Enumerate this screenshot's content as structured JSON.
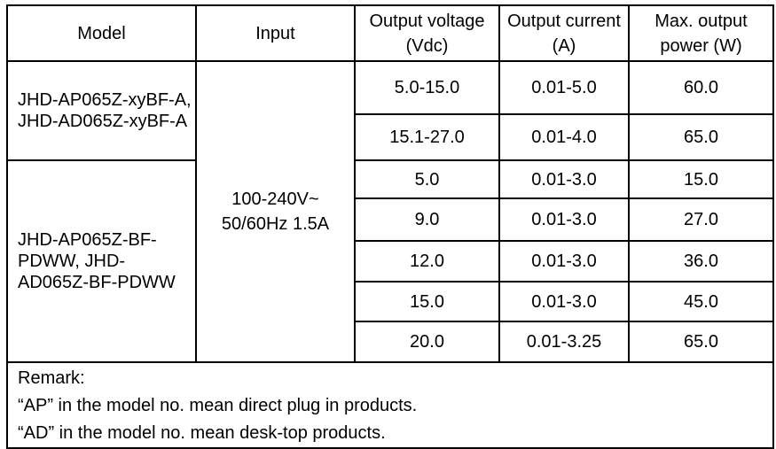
{
  "headers": [
    "Model",
    "Input",
    "Output voltage (Vdc)",
    "Output current (A)",
    "Max. output power (W)"
  ],
  "input": "100-240V~ 50/60Hz 1.5A",
  "groups": [
    {
      "model": "JHD-AP065Z-xyBF-A, JHD-AD065Z-xyBF-A",
      "rows": [
        {
          "voltage": "5.0-15.0",
          "current": "0.01-5.0",
          "power": "60.0"
        },
        {
          "voltage": "15.1-27.0",
          "current": "0.01-4.0",
          "power": "65.0"
        }
      ]
    },
    {
      "model": "JHD-AP065Z-BF-PDWW, JHD-AD065Z-BF-PDWW",
      "rows": [
        {
          "voltage": "5.0",
          "current": "0.01-3.0",
          "power": "15.0"
        },
        {
          "voltage": "9.0",
          "current": "0.01-3.0",
          "power": "27.0"
        },
        {
          "voltage": "12.0",
          "current": "0.01-3.0",
          "power": "36.0"
        },
        {
          "voltage": "15.0",
          "current": "0.01-3.0",
          "power": "45.0"
        },
        {
          "voltage": "20.0",
          "current": "0.01-3.25",
          "power": "65.0"
        }
      ]
    }
  ],
  "remark": {
    "title": "Remark:",
    "lines": [
      "“AP” in the model no. mean direct plug in products.",
      "“AD” in the model no. mean desk-top products."
    ]
  }
}
